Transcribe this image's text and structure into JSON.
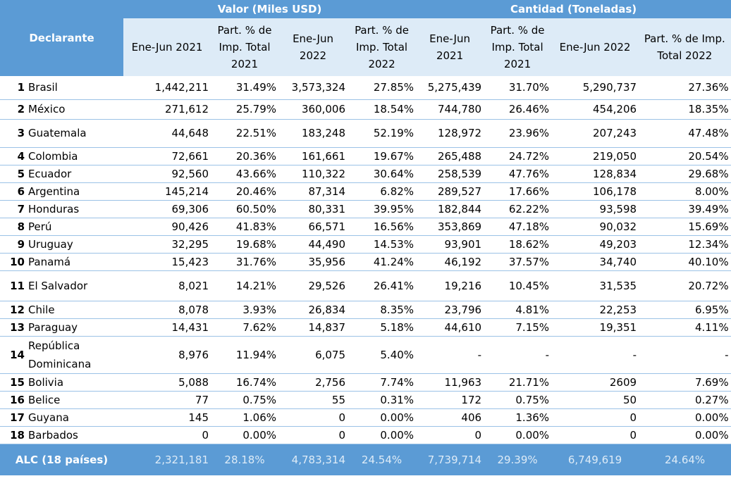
{
  "header": {
    "declarante": "Declarante",
    "group_valor": "Valor (Miles USD)",
    "group_cantidad": "Cantidad (Toneladas)",
    "sub": [
      "Ene-Jun 2021",
      "Part. % de Imp. Total 2021",
      "Ene-Jun 2022",
      "Part. % de Imp. Total 2022",
      "Ene-Jun 2021",
      "Part. % de Imp. Total 2021",
      "Ene-Jun 2022",
      "Part. % de Imp. Total 2022"
    ]
  },
  "rows": [
    {
      "rank": "1",
      "name": "Brasil",
      "cells": [
        "1,442,211",
        "31.49%",
        "3,573,324",
        "27.85%",
        "5,275,439",
        "31.70%",
        "5,290,737",
        "27.36%"
      ]
    },
    {
      "rank": "2",
      "name": "México",
      "cells": [
        "271,612",
        "25.79%",
        "360,006",
        "18.54%",
        "744,780",
        "26.46%",
        "454,206",
        "18.35%"
      ]
    },
    {
      "rank": "3",
      "name": "Guatemala",
      "cells": [
        "44,648",
        "22.51%",
        "183,248",
        "52.19%",
        "128,972",
        "23.96%",
        "207,243",
        "47.48%"
      ]
    },
    {
      "rank": "4",
      "name": "Colombia",
      "cells": [
        "72,661",
        "20.36%",
        "161,661",
        "19.67%",
        "265,488",
        "24.72%",
        "219,050",
        "20.54%"
      ]
    },
    {
      "rank": "5",
      "name": "Ecuador",
      "cells": [
        "92,560",
        "43.66%",
        "110,322",
        "30.64%",
        "258,539",
        "47.76%",
        "128,834",
        "29.68%"
      ]
    },
    {
      "rank": "6",
      "name": "Argentina",
      "cells": [
        "145,214",
        "20.46%",
        "87,314",
        "6.82%",
        "289,527",
        "17.66%",
        "106,178",
        "8.00%"
      ]
    },
    {
      "rank": "7",
      "name": "Honduras",
      "cells": [
        "69,306",
        "60.50%",
        "80,331",
        "39.95%",
        "182,844",
        "62.22%",
        "93,598",
        "39.49%"
      ]
    },
    {
      "rank": "8",
      "name": "Perú",
      "cells": [
        "90,426",
        "41.83%",
        "66,571",
        "16.56%",
        "353,869",
        "47.18%",
        "90,032",
        "15.69%"
      ]
    },
    {
      "rank": "9",
      "name": "Uruguay",
      "cells": [
        "32,295",
        "19.68%",
        "44,490",
        "14.53%",
        "93,901",
        "18.62%",
        "49,203",
        "12.34%"
      ]
    },
    {
      "rank": "10",
      "name": "Panamá",
      "cells": [
        "15,423",
        "31.76%",
        "35,956",
        "41.24%",
        "46,192",
        "37.57%",
        "34,740",
        "40.10%"
      ]
    },
    {
      "rank": "11",
      "name": "El Salvador",
      "cells": [
        "8,021",
        "14.21%",
        "29,526",
        "26.41%",
        "19,216",
        "10.45%",
        "31,535",
        "20.72%"
      ]
    },
    {
      "rank": "12",
      "name": "Chile",
      "cells": [
        "8,078",
        "3.93%",
        "26,834",
        "8.35%",
        "23,796",
        "4.81%",
        "22,253",
        "6.95%"
      ]
    },
    {
      "rank": "13",
      "name": "Paraguay",
      "cells": [
        "14,431",
        "7.62%",
        "14,837",
        "5.18%",
        "44,610",
        "7.15%",
        "19,351",
        "4.11%"
      ]
    },
    {
      "rank": "14",
      "name": "República Dominicana",
      "cells": [
        "8,976",
        "11.94%",
        "6,075",
        "5.40%",
        "-",
        "-",
        "-",
        "-"
      ]
    },
    {
      "rank": "15",
      "name": "Bolivia",
      "cells": [
        "5,088",
        "16.74%",
        "2,756",
        "7.74%",
        "11,963",
        "21.71%",
        "2609",
        "7.69%"
      ]
    },
    {
      "rank": "16",
      "name": "Belice",
      "cells": [
        "77",
        "0.75%",
        "55",
        "0.31%",
        "172",
        "0.75%",
        "50",
        "0.27%"
      ]
    },
    {
      "rank": "17",
      "name": "Guyana",
      "cells": [
        "145",
        "1.06%",
        "0",
        "0.00%",
        "406",
        "1.36%",
        "0",
        "0.00%"
      ]
    },
    {
      "rank": "18",
      "name": "Barbados",
      "cells": [
        "0",
        "0.00%",
        "0",
        "0.00%",
        "0",
        "0.00%",
        "0",
        "0.00%"
      ]
    }
  ],
  "total": {
    "label": "ALC (18 países)",
    "cells": [
      "2,321,181",
      "28.18%",
      "4,783,314",
      "24.54%",
      "7,739,714",
      "29.39%",
      "6,749,619",
      "24.64%"
    ]
  },
  "colors": {
    "header_bg": "#5b9bd5",
    "subheader_bg": "#ddebf7",
    "row_border": "#9bc2e6"
  }
}
